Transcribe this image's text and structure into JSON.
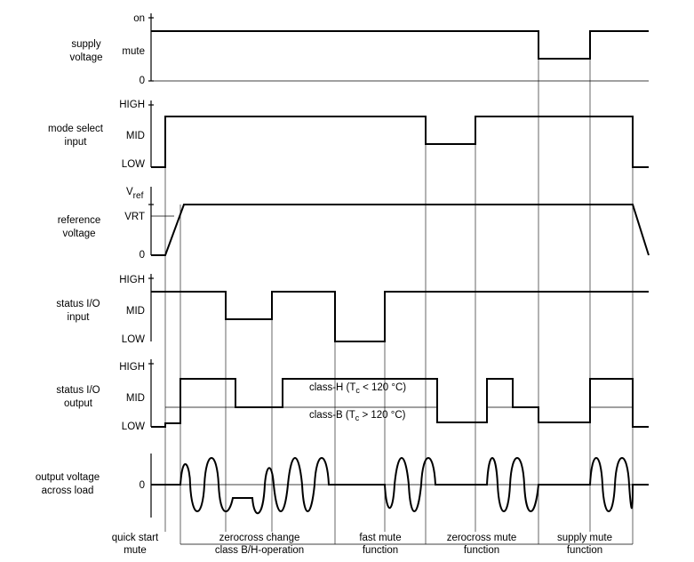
{
  "rows": {
    "supply": {
      "label": [
        "supply",
        "voltage"
      ],
      "levels": [
        "on",
        "mute",
        "0"
      ]
    },
    "mode": {
      "label": [
        "mode select",
        "input"
      ],
      "levels": [
        "HIGH",
        "MID",
        "LOW"
      ]
    },
    "reference": {
      "label": [
        "reference",
        "voltage"
      ],
      "levels": [
        "V",
        "ref",
        "VRT",
        "0"
      ]
    },
    "status_in": {
      "label": [
        "status I/O",
        "input"
      ],
      "levels": [
        "HIGH",
        "MID",
        "LOW"
      ]
    },
    "status_out": {
      "label": [
        "status I/O",
        "output"
      ],
      "levels": [
        "HIGH",
        "MID",
        "LOW"
      ],
      "class_h": {
        "pre": "class-H (T",
        "sub": "c",
        "post": " < 120 °C)"
      },
      "class_b": {
        "pre": "class-B (T",
        "sub": "c",
        "post": " > 120 °C)"
      }
    },
    "output": {
      "label": [
        "output voltage",
        "across load"
      ],
      "levels": [
        "0"
      ]
    }
  },
  "phases": [
    {
      "lines": [
        "quick start",
        "mute"
      ]
    },
    {
      "lines": [
        "zerocross change",
        "class B/H-operation"
      ]
    },
    {
      "lines": [
        "fast mute",
        "function"
      ]
    },
    {
      "lines": [
        "zerocross mute",
        "function"
      ]
    },
    {
      "lines": [
        "supply mute",
        "function"
      ]
    }
  ]
}
